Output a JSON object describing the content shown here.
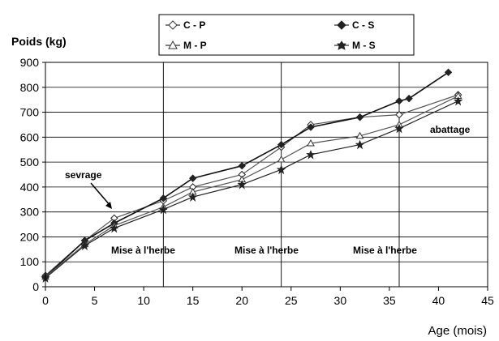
{
  "chart_data": {
    "type": "line",
    "title": "",
    "ylabel": "Poids (kg)",
    "xlabel": "Age (mois)",
    "xlim": [
      0,
      45
    ],
    "ylim": [
      0,
      900
    ],
    "xticks": [
      0,
      5,
      10,
      15,
      20,
      25,
      30,
      35,
      40,
      45
    ],
    "yticks": [
      0,
      100,
      200,
      300,
      400,
      500,
      600,
      700,
      800,
      900
    ],
    "grid": "horizontal",
    "vlines": [
      12,
      24,
      36
    ],
    "legend": {
      "placement": "top",
      "entries": [
        "C - P",
        "C - S",
        "M - P",
        "M - S"
      ]
    },
    "annotations": [
      {
        "text": "sevrage",
        "x": 8,
        "y": 440,
        "arrow_to": [
          7,
          300
        ]
      },
      {
        "text": "abattage",
        "x": 41,
        "y": 610
      },
      {
        "text": "Mise à l'herbe",
        "x": 8.5,
        "y": 140
      },
      {
        "text": "Mise à l'herbe",
        "x": 24.5,
        "y": 140
      },
      {
        "text": "Mise à l'herbe",
        "x": 36.5,
        "y": 140
      }
    ],
    "series": [
      {
        "name": "C - P",
        "marker": "diamond-open",
        "x": [
          0,
          4,
          7,
          12,
          15,
          20,
          24,
          27,
          32,
          36,
          42
        ],
        "y": [
          45,
          185,
          275,
          345,
          400,
          450,
          560,
          650,
          680,
          690,
          770
        ]
      },
      {
        "name": "C - S",
        "marker": "diamond-filled",
        "x": [
          0,
          4,
          7,
          12,
          15,
          20,
          24,
          27,
          32,
          36,
          37,
          41
        ],
        "y": [
          40,
          185,
          255,
          355,
          435,
          485,
          570,
          640,
          680,
          745,
          755,
          860
        ]
      },
      {
        "name": "M - P",
        "marker": "triangle-open",
        "x": [
          0,
          4,
          7,
          12,
          15,
          20,
          24,
          27,
          32,
          36,
          42
        ],
        "y": [
          40,
          170,
          245,
          320,
          380,
          430,
          510,
          575,
          605,
          650,
          765
        ]
      },
      {
        "name": "M - S",
        "marker": "star",
        "x": [
          0,
          4,
          7,
          12,
          15,
          20,
          24,
          27,
          32,
          36,
          42
        ],
        "y": [
          35,
          165,
          235,
          310,
          360,
          410,
          470,
          530,
          570,
          635,
          745
        ]
      }
    ]
  }
}
